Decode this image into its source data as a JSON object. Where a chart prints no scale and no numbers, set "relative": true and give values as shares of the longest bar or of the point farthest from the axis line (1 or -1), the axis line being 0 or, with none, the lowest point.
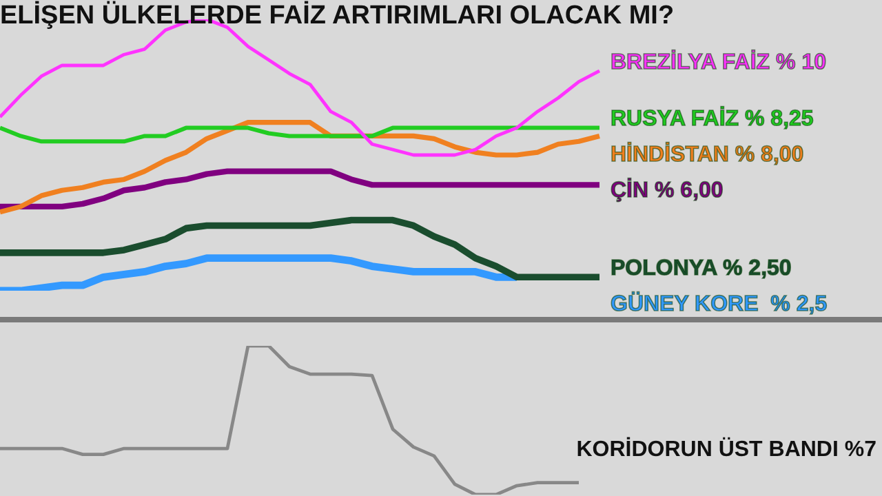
{
  "chart_data": [
    {
      "type": "line",
      "title": "ELİŞEN ÜLKELERDE FAİZ ARTIRIMLARI OLACAK MI?",
      "relative": true,
      "categories": [
        null,
        null,
        null,
        null,
        null,
        null,
        null,
        null,
        null,
        null,
        null,
        null,
        null,
        null,
        null,
        null,
        null,
        null,
        null,
        null,
        null,
        null,
        null,
        null,
        null,
        null,
        null,
        null,
        null,
        null
      ],
      "series": [
        {
          "name": "BREZİLYA FAİZ % 10",
          "color": "#ff33ff",
          "values": [
            0.64,
            0.72,
            0.79,
            0.83,
            0.83,
            0.83,
            0.87,
            0.89,
            0.96,
            0.99,
            1,
            0.97,
            0.9,
            0.85,
            0.8,
            0.76,
            0.66,
            0.62,
            0.54,
            0.52,
            0.5,
            0.5,
            0.5,
            0.52,
            0.57,
            0.6,
            0.66,
            0.71,
            0.77,
            0.81
          ]
        },
        {
          "name": "RUSYA FAİZ % 8,25",
          "color": "#22cc22",
          "values": [
            0.6,
            0.57,
            0.55,
            0.55,
            0.55,
            0.55,
            0.55,
            0.57,
            0.57,
            0.6,
            0.6,
            0.6,
            0.6,
            0.58,
            0.57,
            0.57,
            0.57,
            0.57,
            0.57,
            0.6,
            0.6,
            0.6,
            0.6,
            0.6,
            0.6,
            0.6,
            0.6,
            0.6,
            0.6,
            0.6
          ]
        },
        {
          "name": "HİNDİSTAN % 8,00",
          "color": "#f08020",
          "values": [
            0.29,
            0.31,
            0.35,
            0.37,
            0.38,
            0.4,
            0.41,
            0.44,
            0.48,
            0.51,
            0.56,
            0.59,
            0.62,
            0.62,
            0.62,
            0.62,
            0.57,
            0.57,
            0.57,
            0.57,
            0.57,
            0.56,
            0.53,
            0.51,
            0.5,
            0.5,
            0.51,
            0.54,
            0.55,
            0.57
          ]
        },
        {
          "name": "ÇİN % 6,00",
          "color": "#800080",
          "values": [
            0.31,
            0.31,
            0.31,
            0.31,
            0.32,
            0.34,
            0.37,
            0.38,
            0.4,
            0.41,
            0.43,
            0.44,
            0.44,
            0.44,
            0.44,
            0.44,
            0.44,
            0.41,
            0.39,
            0.39,
            0.39,
            0.39,
            0.39,
            0.39,
            0.39,
            0.39,
            0.39,
            0.39,
            0.39,
            0.39
          ]
        },
        {
          "name": "POLONYA % 2,50",
          "color": "#1a4d2e",
          "values": [
            0.14,
            0.14,
            0.14,
            0.14,
            0.14,
            0.14,
            0.15,
            0.17,
            0.19,
            0.23,
            0.24,
            0.24,
            0.24,
            0.24,
            0.24,
            0.24,
            0.25,
            0.26,
            0.26,
            0.26,
            0.24,
            0.2,
            0.17,
            0.12,
            0.09,
            0.05,
            0.05,
            0.05,
            0.05,
            0.05
          ]
        },
        {
          "name": "GÜNEY KORE  % 2,5",
          "color": "#3399ff",
          "values": [
            0,
            0,
            0.01,
            0.02,
            0.02,
            0.05,
            0.06,
            0.07,
            0.09,
            0.1,
            0.12,
            0.12,
            0.12,
            0.12,
            0.12,
            0.12,
            0.12,
            0.11,
            0.09,
            0.08,
            0.07,
            0.07,
            0.07,
            0.07,
            0.05,
            0.05,
            null,
            null,
            null,
            null
          ]
        }
      ]
    },
    {
      "type": "line",
      "relative": true,
      "categories": [
        null,
        null,
        null,
        null,
        null,
        null,
        null,
        null,
        null,
        null,
        null,
        null,
        null,
        null,
        null,
        null,
        null,
        null,
        null,
        null,
        null,
        null,
        null,
        null,
        null,
        null,
        null,
        null,
        null,
        null
      ],
      "series": [
        {
          "name": "KORİDORUN ÜST BANDI %7",
          "color": "#888888",
          "values": [
            0.31,
            0.31,
            0.31,
            0.31,
            0.27,
            0.27,
            0.31,
            0.31,
            0.31,
            0.31,
            0.31,
            0.31,
            1,
            1,
            0.86,
            0.81,
            0.81,
            0.81,
            0.8,
            0.44,
            0.32,
            0.26,
            0.07,
            0,
            0,
            0.06,
            0.08,
            0.08,
            0.08,
            null
          ]
        }
      ]
    }
  ]
}
